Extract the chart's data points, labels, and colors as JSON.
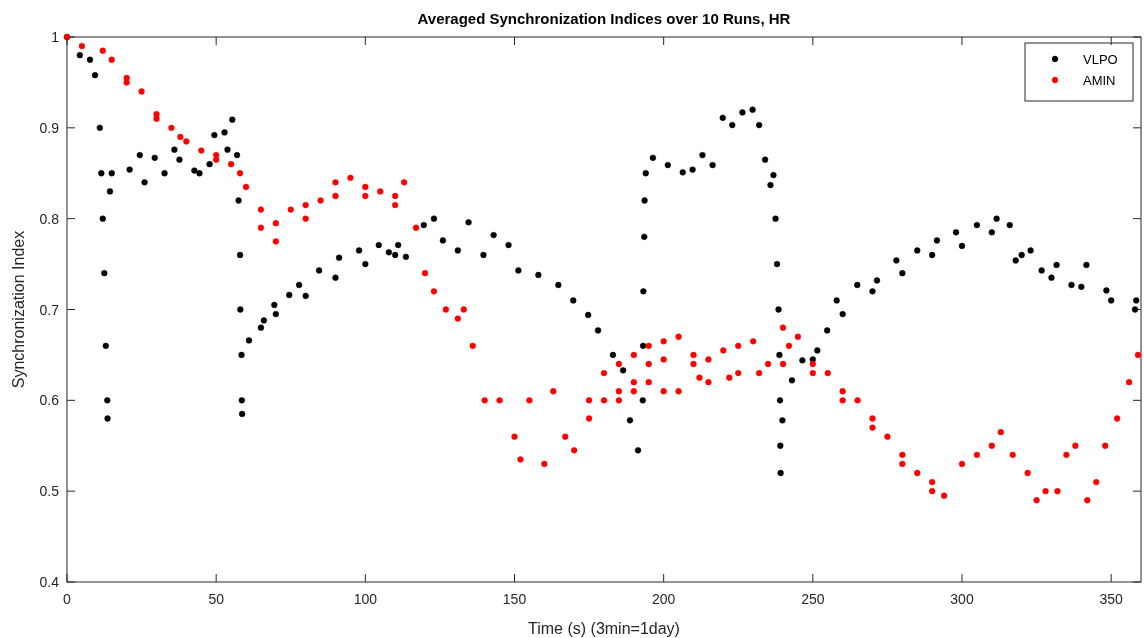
{
  "chart_data": {
    "type": "scatter",
    "title": "Averaged Synchronization Indices over 10 Runs, HR",
    "xlabel": "Time (s) (3min=1day)",
    "ylabel": "Synchronization Index",
    "xlim": [
      0,
      360
    ],
    "ylim": [
      0.4,
      1
    ],
    "xticks": [
      0,
      50,
      100,
      150,
      200,
      250,
      300,
      350
    ],
    "yticks": [
      0.4,
      0.5,
      0.6,
      0.7,
      0.8,
      0.9,
      1
    ],
    "grid": false,
    "legend": "top right",
    "marker": "circle",
    "series": [
      {
        "name": "VLPO",
        "color": "#000000",
        "x": [
          0,
          4.3,
          7.7,
          9.4,
          11,
          11.5,
          12,
          12.5,
          13,
          13.5,
          13.6,
          14.4,
          15,
          21,
          24.4,
          26,
          29.4,
          32.7,
          36,
          37.7,
          42.7,
          44.4,
          47.8,
          49.4,
          52.8,
          53.8,
          55.4,
          57,
          57.5,
          58,
          58.1,
          58.5,
          58.6,
          58.7,
          61,
          66,
          69.5,
          74.5,
          77.8,
          84.5,
          91.2,
          97.9,
          104.5,
          107.9,
          111,
          113.6,
          119.6,
          123,
          126,
          131,
          134.6,
          139.6,
          143,
          148,
          151.3,
          158,
          164.7,
          169.7,
          174.7,
          178,
          183,
          186.4,
          188.7,
          191.4,
          193,
          193.1,
          193.2,
          193.5,
          193.6,
          194,
          196.4,
          201.4,
          206.4,
          209.7,
          213,
          216.4,
          219.8,
          223,
          226.4,
          229.8,
          232,
          234,
          235.8,
          236.8,
          237.5,
          238,
          238.5,
          238.8,
          239,
          239.1,
          239.2,
          239.8,
          243,
          246.5,
          251.5,
          254.8,
          258,
          264.9,
          271.5,
          278,
          285,
          291.6,
          298,
          305,
          311.6,
          316,
          318,
          323,
          326.7,
          331.7,
          336.7,
          341.7,
          348.4,
          358.4,
          65,
          70,
          80,
          90,
          100,
          110,
          250,
          260,
          270,
          280,
          290,
          300,
          310,
          320,
          330,
          340,
          350,
          358
        ],
        "values": [
          1,
          0.98,
          0.975,
          0.958,
          0.9,
          0.85,
          0.8,
          0.74,
          0.66,
          0.6,
          0.58,
          0.83,
          0.85,
          0.854,
          0.87,
          0.84,
          0.867,
          0.85,
          0.876,
          0.865,
          0.853,
          0.85,
          0.86,
          0.892,
          0.895,
          0.876,
          0.909,
          0.87,
          0.82,
          0.76,
          0.7,
          0.65,
          0.6,
          0.585,
          0.666,
          0.688,
          0.705,
          0.716,
          0.727,
          0.743,
          0.757,
          0.765,
          0.771,
          0.763,
          0.771,
          0.758,
          0.793,
          0.8,
          0.776,
          0.765,
          0.796,
          0.76,
          0.782,
          0.771,
          0.743,
          0.738,
          0.727,
          0.71,
          0.694,
          0.677,
          0.65,
          0.633,
          0.578,
          0.545,
          0.6,
          0.66,
          0.72,
          0.78,
          0.82,
          0.85,
          0.867,
          0.859,
          0.851,
          0.854,
          0.87,
          0.859,
          0.911,
          0.903,
          0.917,
          0.92,
          0.903,
          0.865,
          0.837,
          0.848,
          0.8,
          0.75,
          0.7,
          0.65,
          0.6,
          0.55,
          0.52,
          0.578,
          0.622,
          0.644,
          0.655,
          0.677,
          0.71,
          0.727,
          0.732,
          0.754,
          0.765,
          0.776,
          0.785,
          0.793,
          0.8,
          0.793,
          0.754,
          0.765,
          0.743,
          0.749,
          0.727,
          0.749,
          0.721,
          0.71,
          0.68,
          0.695,
          0.715,
          0.735,
          0.75,
          0.76,
          0.645,
          0.695,
          0.72,
          0.74,
          0.76,
          0.77,
          0.785,
          0.76,
          0.735,
          0.725,
          0.71,
          0.7
        ]
      },
      {
        "name": "AMIN",
        "color": "#ff0000",
        "x": [
          0,
          5,
          12,
          15,
          20,
          25,
          30,
          35,
          38,
          45,
          50,
          55,
          60,
          65,
          70,
          75,
          80,
          85,
          90,
          95,
          100,
          105,
          110,
          113,
          117,
          120,
          123,
          127,
          131,
          133,
          136,
          140,
          145,
          150,
          152,
          155,
          160,
          163,
          167,
          170,
          175,
          180,
          185,
          190,
          195,
          200,
          205,
          210,
          215,
          220,
          225,
          230,
          240,
          245,
          250,
          255,
          260,
          265,
          270,
          275,
          280,
          285,
          290,
          294,
          300,
          305,
          310,
          313,
          317,
          322,
          325,
          328,
          332,
          335,
          338,
          342,
          345,
          348,
          352,
          356,
          359,
          20,
          30,
          40,
          50,
          58,
          65,
          70,
          80,
          90,
          100,
          110,
          175,
          185,
          190,
          195,
          200,
          210,
          215,
          225,
          235,
          242,
          250,
          260,
          270,
          280,
          290,
          180,
          185,
          190,
          195,
          200,
          205,
          212,
          222,
          232,
          240
        ],
        "values": [
          1,
          0.99,
          0.985,
          0.975,
          0.955,
          0.94,
          0.915,
          0.9,
          0.89,
          0.875,
          0.865,
          0.86,
          0.835,
          0.81,
          0.795,
          0.81,
          0.815,
          0.82,
          0.84,
          0.845,
          0.835,
          0.83,
          0.825,
          0.84,
          0.79,
          0.74,
          0.72,
          0.7,
          0.69,
          0.7,
          0.66,
          0.6,
          0.6,
          0.56,
          0.535,
          0.6,
          0.53,
          0.61,
          0.56,
          0.545,
          0.6,
          0.63,
          0.64,
          0.65,
          0.66,
          0.665,
          0.67,
          0.65,
          0.645,
          0.655,
          0.66,
          0.665,
          0.68,
          0.67,
          0.64,
          0.63,
          0.61,
          0.6,
          0.58,
          0.56,
          0.54,
          0.52,
          0.51,
          0.495,
          0.53,
          0.54,
          0.55,
          0.565,
          0.54,
          0.52,
          0.49,
          0.5,
          0.5,
          0.54,
          0.55,
          0.49,
          0.51,
          0.55,
          0.58,
          0.62,
          0.65,
          0.95,
          0.91,
          0.885,
          0.87,
          0.85,
          0.79,
          0.775,
          0.8,
          0.825,
          0.825,
          0.815,
          0.58,
          0.61,
          0.62,
          0.64,
          0.645,
          0.64,
          0.62,
          0.63,
          0.64,
          0.66,
          0.63,
          0.6,
          0.57,
          0.53,
          0.5,
          0.6,
          0.6,
          0.61,
          0.62,
          0.61,
          0.61,
          0.625,
          0.625,
          0.63,
          0.64
        ]
      }
    ]
  }
}
